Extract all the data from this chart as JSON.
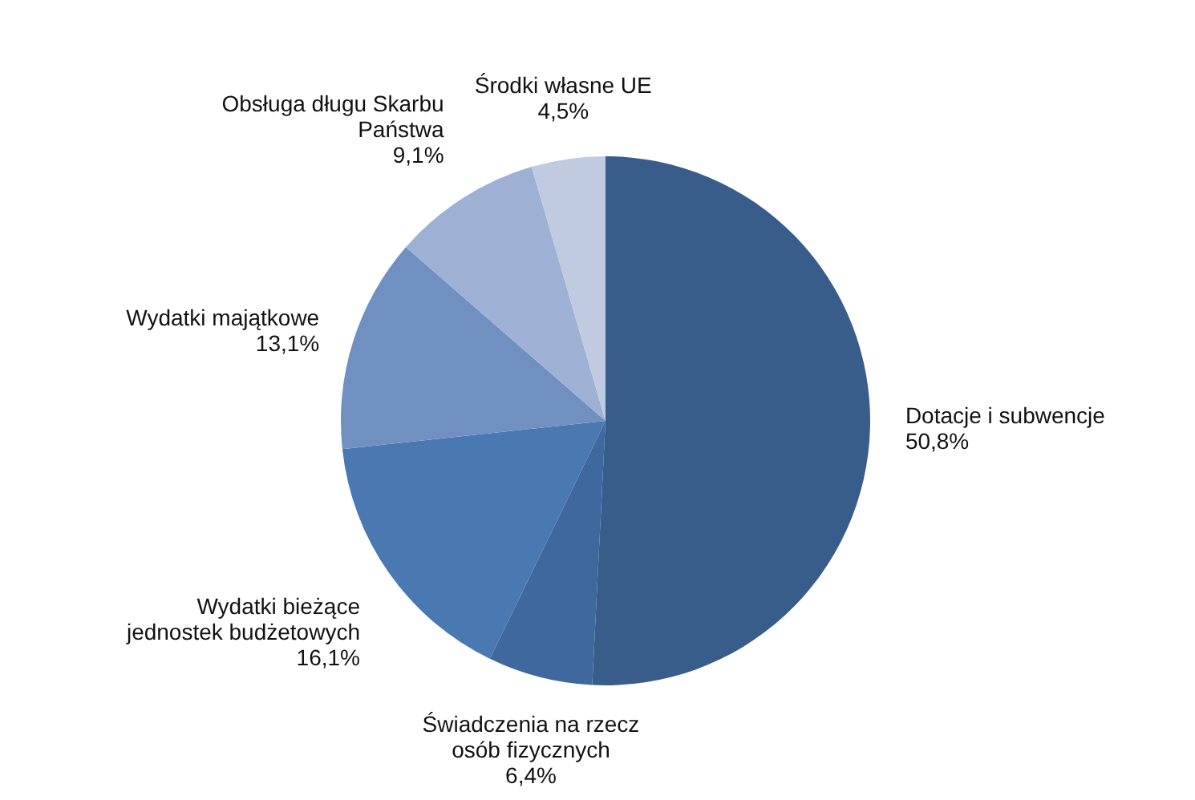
{
  "chart_data": {
    "type": "pie",
    "categories": [
      "Dotacje i subwencje",
      "Świadczenia na rzecz osób fizycznych",
      "Wydatki bieżące jednostek budżetowych",
      "Wydatki majątkowe",
      "Obsługa długu Skarbu Państwa",
      "Środki własne UE"
    ],
    "values": [
      50.8,
      6.4,
      16.1,
      13.1,
      9.1,
      4.5
    ],
    "colors": [
      "#385d8a",
      "#3f689e",
      "#4a78b0",
      "#7090c2",
      "#9eb1d4",
      "#c0cbe1"
    ],
    "value_labels": [
      "50,8%",
      "6,4%",
      "16,1%",
      "13,1%",
      "9,1%",
      "4,5%"
    ]
  }
}
